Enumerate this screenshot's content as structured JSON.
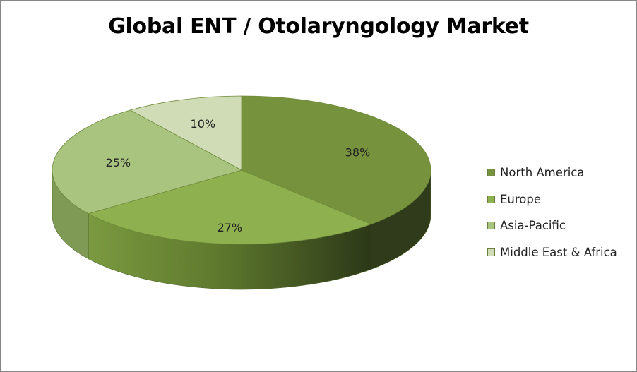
{
  "chart_data": {
    "type": "pie",
    "title": "Global ENT / Otolaryngology Market",
    "categories": [
      "North America",
      "Europe",
      "Asia-Pacific",
      "Middle East & Africa"
    ],
    "values": [
      38,
      27,
      25,
      10
    ],
    "data_labels": [
      "38%",
      "27%",
      "25%",
      "10%"
    ],
    "colors": [
      "#76923c",
      "#8fb04e",
      "#a9c47f",
      "#d0dcb5"
    ],
    "side_colors": [
      "#2f3b1a",
      "#4c5e27",
      "#7f9a55",
      "#b9c99a"
    ],
    "legend_position": "right",
    "style": "3d"
  }
}
